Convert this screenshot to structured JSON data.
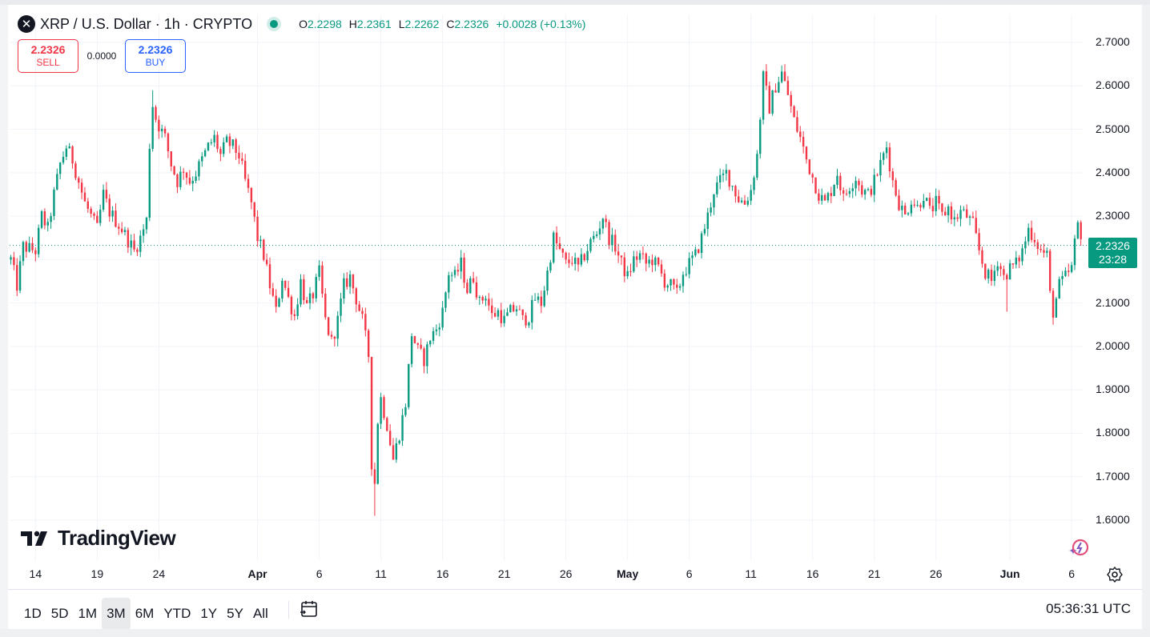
{
  "legend": {
    "symbol_icon": "x-close-icon",
    "title": "XRP / U.S. Dollar · 1h · CRYPTO",
    "ohlc": [
      {
        "k": "O",
        "v": "2.2298"
      },
      {
        "k": "H",
        "v": "2.2361"
      },
      {
        "k": "L",
        "v": "2.2262"
      },
      {
        "k": "C",
        "v": "2.2326"
      }
    ],
    "change": "+0.0028 (+0.13%)"
  },
  "trade": {
    "sell_price": "2.2326",
    "sell_label": "SELL",
    "spread": "0.0000",
    "buy_price": "2.2326",
    "buy_label": "BUY"
  },
  "price_tag": {
    "price": "2.2326",
    "countdown": "23:28"
  },
  "branding": {
    "logo_text": "TradingView"
  },
  "toolbar": {
    "ranges": [
      "1D",
      "5D",
      "1M",
      "3M",
      "6M",
      "YTD",
      "1Y",
      "5Y",
      "All"
    ],
    "active_range": "3M",
    "clock": "05:36:31 UTC"
  },
  "colors": {
    "up": "#089981",
    "down": "#f23645",
    "grid": "#f0f3fa"
  },
  "chart_data": {
    "type": "candlestick",
    "title": "XRP / U.S. Dollar · 1h · CRYPTO",
    "ylim": [
      1.55,
      2.72
    ],
    "ytick_values": [
      2.7,
      2.6,
      2.5,
      2.4,
      2.3,
      2.2,
      2.1,
      2.0,
      1.9,
      1.8,
      1.7,
      1.6
    ],
    "ytick_labels": [
      "2.7000",
      "2.6000",
      "2.5000",
      "2.4000",
      "2.3000",
      "2.2000",
      "2.1000",
      "2.0000",
      "1.9000",
      "1.8000",
      "1.7000",
      "1.6000"
    ],
    "x_tick_labels": [
      "14",
      "19",
      "24",
      "Apr",
      "6",
      "11",
      "16",
      "21",
      "26",
      "May",
      "6",
      "11",
      "16",
      "21",
      "26",
      "Jun",
      "6"
    ],
    "x_tick_days": [
      0,
      5,
      10,
      18,
      23,
      28,
      33,
      38,
      43,
      48,
      53,
      58,
      63,
      68,
      73,
      79,
      84
    ],
    "x_tick_bold": [
      "Apr",
      "May",
      "Jun"
    ],
    "day_span": [
      -2.1,
      84.9
    ],
    "current_price": 2.2326,
    "price_path": [
      [
        -2.0,
        2.2
      ],
      [
        -1.5,
        2.14
      ],
      [
        -1.0,
        2.23
      ],
      [
        0.0,
        2.22
      ],
      [
        0.5,
        2.3
      ],
      [
        1.0,
        2.27
      ],
      [
        1.5,
        2.35
      ],
      [
        2.0,
        2.42
      ],
      [
        2.5,
        2.46
      ],
      [
        3.0,
        2.43
      ],
      [
        3.5,
        2.38
      ],
      [
        4.0,
        2.33
      ],
      [
        4.5,
        2.3
      ],
      [
        5.0,
        2.27
      ],
      [
        5.5,
        2.35
      ],
      [
        6.0,
        2.31
      ],
      [
        7.0,
        2.27
      ],
      [
        8.0,
        2.22
      ],
      [
        8.5,
        2.25
      ],
      [
        9.0,
        2.29
      ],
      [
        9.4,
        2.57
      ],
      [
        9.8,
        2.52
      ],
      [
        10.5,
        2.48
      ],
      [
        11.0,
        2.42
      ],
      [
        11.5,
        2.38
      ],
      [
        12.0,
        2.41
      ],
      [
        12.5,
        2.38
      ],
      [
        13.0,
        2.4
      ],
      [
        13.5,
        2.43
      ],
      [
        14.0,
        2.46
      ],
      [
        14.5,
        2.48
      ],
      [
        15.0,
        2.44
      ],
      [
        15.5,
        2.47
      ],
      [
        16.0,
        2.46
      ],
      [
        16.5,
        2.44
      ],
      [
        17.0,
        2.38
      ],
      [
        17.5,
        2.33
      ],
      [
        18.0,
        2.25
      ],
      [
        18.5,
        2.21
      ],
      [
        19.0,
        2.14
      ],
      [
        19.5,
        2.08
      ],
      [
        20.0,
        2.16
      ],
      [
        20.5,
        2.11
      ],
      [
        21.0,
        2.07
      ],
      [
        21.5,
        2.15
      ],
      [
        22.0,
        2.09
      ],
      [
        22.5,
        2.12
      ],
      [
        23.0,
        2.17
      ],
      [
        23.5,
        2.06
      ],
      [
        24.0,
        2.01
      ],
      [
        24.5,
        2.06
      ],
      [
        25.0,
        2.14
      ],
      [
        25.5,
        2.16
      ],
      [
        26.0,
        2.11
      ],
      [
        26.5,
        2.06
      ],
      [
        27.0,
        1.98
      ],
      [
        27.2,
        1.77
      ],
      [
        27.4,
        1.62
      ],
      [
        27.7,
        1.82
      ],
      [
        28.0,
        1.88
      ],
      [
        28.5,
        1.82
      ],
      [
        29.0,
        1.74
      ],
      [
        29.5,
        1.8
      ],
      [
        30.0,
        1.87
      ],
      [
        30.5,
        2.03
      ],
      [
        31.0,
        1.99
      ],
      [
        31.5,
        1.97
      ],
      [
        32.0,
        2.02
      ],
      [
        32.5,
        2.04
      ],
      [
        33.0,
        2.08
      ],
      [
        33.5,
        2.17
      ],
      [
        34.0,
        2.16
      ],
      [
        34.5,
        2.19
      ],
      [
        35.0,
        2.13
      ],
      [
        35.5,
        2.16
      ],
      [
        36.0,
        2.1
      ],
      [
        36.5,
        2.12
      ],
      [
        37.0,
        2.07
      ],
      [
        37.5,
        2.08
      ],
      [
        38.0,
        2.06
      ],
      [
        38.5,
        2.08
      ],
      [
        39.0,
        2.09
      ],
      [
        39.5,
        2.06
      ],
      [
        40.0,
        2.07
      ],
      [
        40.5,
        2.11
      ],
      [
        41.0,
        2.1
      ],
      [
        41.5,
        2.17
      ],
      [
        42.0,
        2.25
      ],
      [
        42.5,
        2.22
      ],
      [
        43.0,
        2.19
      ],
      [
        43.5,
        2.2
      ],
      [
        44.0,
        2.18
      ],
      [
        44.5,
        2.21
      ],
      [
        45.0,
        2.24
      ],
      [
        45.5,
        2.26
      ],
      [
        46.0,
        2.3
      ],
      [
        46.5,
        2.25
      ],
      [
        47.0,
        2.23
      ],
      [
        47.5,
        2.19
      ],
      [
        48.0,
        2.16
      ],
      [
        48.5,
        2.2
      ],
      [
        49.0,
        2.21
      ],
      [
        49.5,
        2.19
      ],
      [
        50.0,
        2.2
      ],
      [
        50.5,
        2.18
      ],
      [
        51.0,
        2.15
      ],
      [
        51.5,
        2.14
      ],
      [
        52.0,
        2.12
      ],
      [
        52.5,
        2.17
      ],
      [
        53.0,
        2.19
      ],
      [
        53.5,
        2.21
      ],
      [
        54.0,
        2.25
      ],
      [
        54.5,
        2.3
      ],
      [
        55.0,
        2.36
      ],
      [
        55.5,
        2.38
      ],
      [
        56.0,
        2.4
      ],
      [
        56.5,
        2.37
      ],
      [
        57.0,
        2.34
      ],
      [
        57.5,
        2.33
      ],
      [
        58.0,
        2.36
      ],
      [
        58.5,
        2.44
      ],
      [
        59.0,
        2.62
      ],
      [
        59.5,
        2.55
      ],
      [
        60.0,
        2.6
      ],
      [
        60.5,
        2.63
      ],
      [
        61.0,
        2.58
      ],
      [
        61.5,
        2.52
      ],
      [
        62.0,
        2.48
      ],
      [
        62.5,
        2.43
      ],
      [
        63.0,
        2.39
      ],
      [
        63.5,
        2.35
      ],
      [
        64.0,
        2.33
      ],
      [
        64.5,
        2.36
      ],
      [
        65.0,
        2.4
      ],
      [
        65.5,
        2.34
      ],
      [
        66.0,
        2.37
      ],
      [
        66.5,
        2.39
      ],
      [
        67.0,
        2.36
      ],
      [
        67.5,
        2.35
      ],
      [
        68.0,
        2.38
      ],
      [
        68.5,
        2.42
      ],
      [
        69.0,
        2.46
      ],
      [
        69.5,
        2.38
      ],
      [
        70.0,
        2.33
      ],
      [
        70.5,
        2.3
      ],
      [
        71.0,
        2.34
      ],
      [
        71.5,
        2.32
      ],
      [
        72.0,
        2.35
      ],
      [
        72.5,
        2.31
      ],
      [
        73.0,
        2.33
      ],
      [
        73.5,
        2.3
      ],
      [
        74.0,
        2.32
      ],
      [
        74.5,
        2.29
      ],
      [
        75.0,
        2.31
      ],
      [
        75.5,
        2.3
      ],
      [
        76.0,
        2.28
      ],
      [
        76.5,
        2.22
      ],
      [
        77.0,
        2.17
      ],
      [
        77.5,
        2.15
      ],
      [
        78.0,
        2.2
      ],
      [
        78.5,
        2.16
      ],
      [
        79.0,
        2.18
      ],
      [
        79.5,
        2.19
      ],
      [
        80.0,
        2.22
      ],
      [
        80.5,
        2.27
      ],
      [
        81.0,
        2.25
      ],
      [
        81.5,
        2.22
      ],
      [
        82.0,
        2.21
      ],
      [
        82.3,
        2.1
      ],
      [
        82.5,
        2.08
      ],
      [
        83.0,
        2.14
      ],
      [
        83.5,
        2.16
      ],
      [
        84.0,
        2.18
      ],
      [
        84.4,
        2.27
      ],
      [
        84.6,
        2.29
      ],
      [
        84.9,
        2.2326
      ]
    ],
    "extremes": [
      {
        "day": 9.4,
        "high": 2.59
      },
      {
        "day": 27.4,
        "low": 1.61
      },
      {
        "day": 59.2,
        "high": 2.65
      },
      {
        "day": 60.8,
        "high": 2.65
      },
      {
        "day": 78.8,
        "low": 2.08
      },
      {
        "day": 82.5,
        "low": 2.06
      }
    ]
  }
}
